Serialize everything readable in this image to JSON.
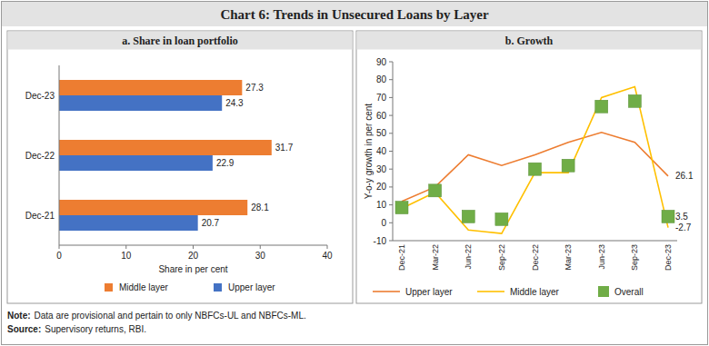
{
  "header": {
    "title": "Chart 6: Trends in Unsecured Loans by Layer"
  },
  "chart_data": [
    {
      "type": "bar",
      "title": "a. Share in loan portfolio",
      "orientation": "horizontal",
      "categories": [
        "Dec-21",
        "Dec-22",
        "Dec-23"
      ],
      "series": [
        {
          "name": "Middle layer",
          "color": "#ED7D31",
          "values": [
            28.1,
            31.7,
            27.3
          ]
        },
        {
          "name": "Upper layer",
          "color": "#4472C4",
          "values": [
            20.7,
            22.9,
            24.3
          ]
        }
      ],
      "xlim": [
        0,
        40
      ],
      "xticks": [
        0,
        10,
        20,
        30,
        40
      ],
      "xlabel": "Share in per cent",
      "data_labels": true,
      "legend": "bottom",
      "grid": false
    },
    {
      "type": "line",
      "title": "b. Growth",
      "categories": [
        "Dec-21",
        "Mar-22",
        "Jun-22",
        "Sep-22",
        "Dec-22",
        "Mar-23",
        "Jun-23",
        "Sep-23",
        "Dec-23"
      ],
      "series": [
        {
          "name": "Upper layer",
          "color": "#ED7D31",
          "values": [
            12,
            20,
            38,
            32,
            38,
            45,
            50.5,
            45,
            26.1
          ],
          "value_labels": [
            null,
            null,
            null,
            null,
            null,
            null,
            null,
            null,
            "26.1"
          ]
        },
        {
          "name": "Middle layer",
          "color": "#FFC000",
          "values": [
            8,
            17,
            -4,
            -6,
            28,
            28,
            70,
            76,
            -2.7
          ],
          "value_labels": [
            null,
            null,
            null,
            null,
            null,
            null,
            null,
            null,
            "-2.7"
          ]
        },
        {
          "name": "Overall",
          "type": "scatter",
          "marker": "square",
          "color": "#70AD47",
          "values": [
            8.5,
            18,
            3.5,
            2,
            30,
            32,
            65,
            68,
            3.5
          ],
          "value_labels": [
            null,
            null,
            null,
            null,
            null,
            null,
            null,
            null,
            "3.5"
          ]
        }
      ],
      "ylim": [
        -10,
        90
      ],
      "yticks": [
        -10,
        0,
        10,
        20,
        30,
        40,
        50,
        60,
        70,
        80,
        90
      ],
      "ylabel": "Y-o-y growth in per cent",
      "legend": "bottom",
      "grid": false
    }
  ],
  "footer": {
    "note_label": "Note:",
    "note": "Data are provisional and pertain to only NBFCs-UL and NBFCs-ML.",
    "source_label": "Source:",
    "source": "Supervisory returns, RBI."
  }
}
